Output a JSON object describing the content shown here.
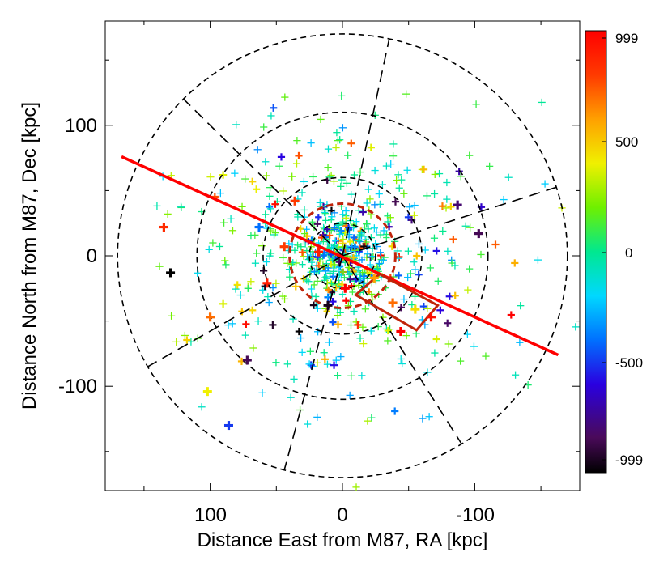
{
  "chart_data": {
    "type": "scatter",
    "title": "",
    "xlabel": "Distance East from M87, RA [kpc]",
    "ylabel": "Distance North from M87, Dec [kpc]",
    "xlim": [
      180,
      -180
    ],
    "ylim": [
      -180,
      180
    ],
    "x_ticks": [
      100,
      0,
      -100
    ],
    "x_tick_labels": [
      "100",
      "0",
      "-100"
    ],
    "y_ticks": [
      100,
      0,
      -100
    ],
    "y_tick_labels": [
      "100",
      "0",
      "-100"
    ],
    "colorbar": {
      "ticks": [
        999,
        500,
        0,
        -500,
        -999
      ],
      "tick_labels": [
        "999",
        "500",
        "0",
        "-500",
        "-999"
      ],
      "range": [
        -999,
        999
      ],
      "colormap": "rainbow"
    },
    "circles_radii_kpc": [
      25,
      60,
      110,
      170
    ],
    "red_dashed_circle_radius_kpc": 40,
    "sector_angles_deg": [
      18,
      78,
      135,
      210,
      255,
      302
    ],
    "major_axis_line": {
      "x": [
        167,
        -163
      ],
      "y": [
        76,
        -76
      ]
    },
    "box_corners_kpc": [
      [
        -10,
        -30
      ],
      [
        -28,
        -14
      ],
      [
        -72,
        -38
      ],
      [
        -56,
        -57
      ]
    ],
    "highlighted_points": [
      {
        "x": 135,
        "y": 22,
        "v": 850
      },
      {
        "x": 130,
        "y": -13,
        "v": -999
      },
      {
        "x": 100,
        "y": -47,
        "v": 700
      },
      {
        "x": -44,
        "y": -58,
        "v": 999
      },
      {
        "x": -67,
        "y": -47,
        "v": 950
      },
      {
        "x": -103,
        "y": 17,
        "v": -850
      },
      {
        "x": -87,
        "y": 39,
        "v": -800
      },
      {
        "x": 72,
        "y": -80,
        "v": -850
      },
      {
        "x": 86,
        "y": -130,
        "v": -500
      },
      {
        "x": 102,
        "y": -104,
        "v": 400
      },
      {
        "x": 11,
        "y": -38,
        "v": -950
      },
      {
        "x": -2,
        "y": -25,
        "v": 999
      },
      {
        "x": 44,
        "y": 7,
        "v": 800
      },
      {
        "x": -38,
        "y": -36,
        "v": 700
      },
      {
        "x": -55,
        "y": -41,
        "v": 450
      },
      {
        "x": 18,
        "y": 3,
        "v": 900
      },
      {
        "x": -24,
        "y": -17,
        "v": 600
      },
      {
        "x": 36,
        "y": 42,
        "v": 800
      },
      {
        "x": 63,
        "y": 22,
        "v": -400
      },
      {
        "x": 57,
        "y": -21,
        "v": 900
      }
    ],
    "field_points": {
      "count": 680,
      "distribution": "centrally concentrated around (0,0), scale ~22 kpc core plus ~70 kpc halo",
      "velocity_range": [
        -999,
        999
      ]
    }
  }
}
